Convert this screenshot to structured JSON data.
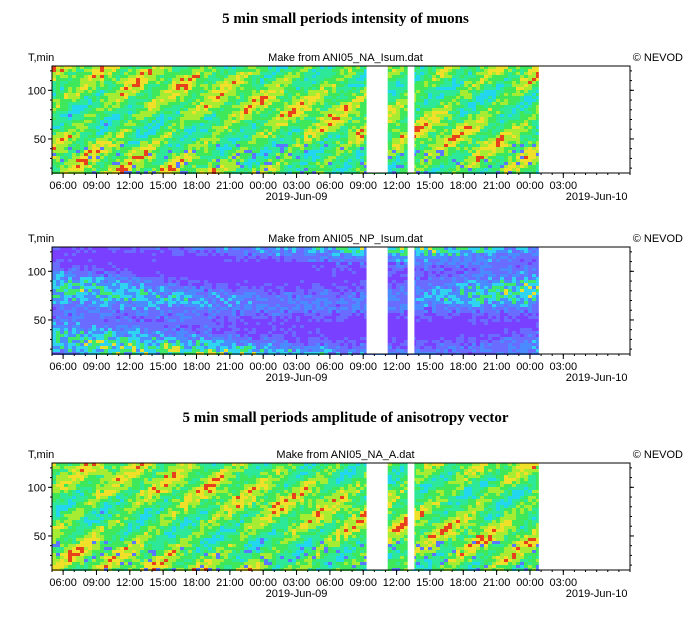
{
  "titles": {
    "intensity": "5 min small periods intensity of muons",
    "amplitude": "5 min small periods amplitude of anisotropy vector"
  },
  "copyright": "© NEVOD",
  "chart_data": [
    {
      "type": "heatmap",
      "title": "5 min small periods intensity of muons",
      "subtitle": "Make from ANI05_NA_Isum.dat",
      "ylabel": "T,min",
      "yticks": [
        50,
        100
      ],
      "ylim": [
        15,
        125
      ],
      "xticks": [
        "06:00",
        "09:00",
        "12:00",
        "15:00",
        "18:00",
        "21:00",
        "00:00",
        "03:00",
        "06:00",
        "09:00",
        "12:00",
        "15:00",
        "18:00",
        "21:00",
        "00:00",
        "03:00"
      ],
      "xtick_hours": [
        6,
        9,
        12,
        15,
        18,
        21,
        24,
        27,
        30,
        33,
        36,
        39,
        42,
        45,
        48,
        51
      ],
      "dates": [
        "2019-Jun-09",
        "2019-Jun-10"
      ],
      "date_hours": [
        27,
        54
      ],
      "xlim_hours": [
        5,
        57
      ],
      "data_hours": [
        5,
        48.8
      ],
      "gaps_hours": [
        [
          33.3,
          35.2
        ],
        [
          37.0,
          37.6
        ]
      ],
      "palette": "green"
    },
    {
      "type": "heatmap",
      "title": "",
      "subtitle": "Make from ANI05_NP_Isum.dat",
      "ylabel": "T,min",
      "yticks": [
        50,
        100
      ],
      "ylim": [
        15,
        125
      ],
      "xticks": [
        "06:00",
        "09:00",
        "12:00",
        "15:00",
        "18:00",
        "21:00",
        "00:00",
        "03:00",
        "06:00",
        "09:00",
        "12:00",
        "15:00",
        "18:00",
        "21:00",
        "00:00",
        "03:00"
      ],
      "xtick_hours": [
        6,
        9,
        12,
        15,
        18,
        21,
        24,
        27,
        30,
        33,
        36,
        39,
        42,
        45,
        48,
        51
      ],
      "dates": [
        "2019-Jun-09",
        "2019-Jun-10"
      ],
      "date_hours": [
        27,
        54
      ],
      "xlim_hours": [
        5,
        57
      ],
      "data_hours": [
        5,
        48.8
      ],
      "gaps_hours": [
        [
          33.3,
          35.2
        ],
        [
          37.0,
          37.6
        ]
      ],
      "palette": "purple"
    },
    {
      "type": "heatmap",
      "title": "5 min small periods amplitude of anisotropy vector",
      "subtitle": "Make from ANI05_NA_A.dat",
      "ylabel": "T,min",
      "yticks": [
        50,
        100
      ],
      "ylim": [
        15,
        125
      ],
      "xticks": [
        "06:00",
        "09:00",
        "12:00",
        "15:00",
        "18:00",
        "21:00",
        "00:00",
        "03:00",
        "06:00",
        "09:00",
        "12:00",
        "15:00",
        "18:00",
        "21:00",
        "00:00",
        "03:00"
      ],
      "xtick_hours": [
        6,
        9,
        12,
        15,
        18,
        21,
        24,
        27,
        30,
        33,
        36,
        39,
        42,
        45,
        48,
        51
      ],
      "dates": [
        "2019-Jun-09",
        "2019-Jun-10"
      ],
      "date_hours": [
        27,
        54
      ],
      "xlim_hours": [
        5,
        57
      ],
      "data_hours": [
        5,
        48.8
      ],
      "gaps_hours": [
        [
          33.3,
          35.2
        ],
        [
          37.0,
          37.6
        ]
      ],
      "palette": "green"
    }
  ]
}
